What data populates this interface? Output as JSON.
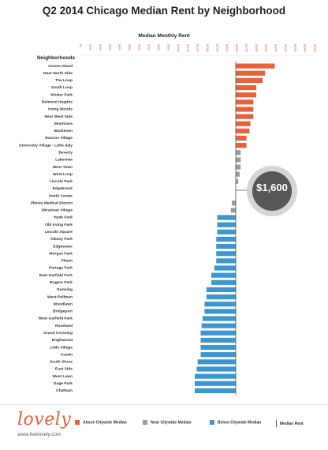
{
  "chart_data": {
    "type": "bar",
    "orientation": "horizontal",
    "title": "Q2 2014 Chicago Median Rent by Neighborhood",
    "xlabel": "Median Monthly Rent",
    "ylabel": "Neighborhoods",
    "reference_line": {
      "value": 1600,
      "label": "$1,600"
    },
    "xlim": [
      0,
      2400
    ],
    "x_ticks": [
      0,
      100,
      200,
      300,
      400,
      500,
      600,
      700,
      800,
      900,
      1000,
      1100,
      1200,
      1300,
      1400,
      1500,
      1600,
      1700,
      1800,
      1900,
      2000,
      2100,
      2200,
      2300,
      2400
    ],
    "x_tick_labels": [
      "$0",
      "$100",
      "$200",
      "$300",
      "$400",
      "$500",
      "$600",
      "$700",
      "$800",
      "$900",
      "$1000",
      "$1100",
      "$1200",
      "$1300",
      "$1400",
      "$1500",
      "$1600",
      "$1700",
      "$1800",
      "$1900",
      "$2000",
      "$2100",
      "$2200",
      "$2300",
      "$2400"
    ],
    "categories": [
      "Goose Island",
      "Near North Side",
      "The Loop",
      "South Loop",
      "Wicker Park",
      "Belmont Heights",
      "Irving Woods",
      "Near West Side",
      "Montclare",
      "Bucktown",
      "Roscoe Village",
      "University Village - Little Italy",
      "Beverly",
      "Lakeview",
      "West Town",
      "West Loop",
      "Lincoln Park",
      "Edgebrook",
      "North Center",
      "Illinois Medical District",
      "Ukrainian Village",
      "Hyde Park",
      "Old Irving Park",
      "Lincoln Square",
      "Albany Park",
      "Edgewater",
      "Morgan Park",
      "Pilsen",
      "Portage Park",
      "East Garfield Park",
      "Rogers Park",
      "Dunning",
      "West Pullman",
      "Woodlawn",
      "Bridgeport",
      "West Garfield Park",
      "Roseland",
      "Grand Crossing",
      "Englewood",
      "Little Village",
      "Austin",
      "South Shore",
      "East Side",
      "West Lawn",
      "Gage Park",
      "Chatham"
    ],
    "values": [
      2000,
      1900,
      1875,
      1810,
      1810,
      1780,
      1780,
      1780,
      1750,
      1740,
      1710,
      1710,
      1650,
      1650,
      1650,
      1640,
      1625,
      1600,
      1600,
      1560,
      1550,
      1410,
      1410,
      1410,
      1400,
      1400,
      1400,
      1400,
      1380,
      1350,
      1350,
      1300,
      1300,
      1280,
      1280,
      1260,
      1250,
      1240,
      1240,
      1240,
      1240,
      1210,
      1200,
      1180,
      1180,
      1180
    ],
    "groups": [
      "above",
      "above",
      "above",
      "above",
      "above",
      "above",
      "above",
      "above",
      "above",
      "above",
      "above",
      "above",
      "near",
      "near",
      "near",
      "near",
      "near",
      "none",
      "none",
      "near",
      "near",
      "below",
      "below",
      "below",
      "below",
      "below",
      "below",
      "below",
      "below",
      "below",
      "below",
      "below",
      "below",
      "below",
      "below",
      "below",
      "below",
      "below",
      "below",
      "below",
      "below",
      "below",
      "below",
      "below",
      "below",
      "below"
    ],
    "colors": {
      "above": "#e8603c",
      "near": "#9b9b9b",
      "below": "#3c97d0",
      "line": "#555555"
    },
    "legend": [
      {
        "key": "above",
        "label": "Above Citywide Median"
      },
      {
        "key": "near",
        "label": "Near Citywide Median"
      },
      {
        "key": "below",
        "label": "Below Citywide Median"
      },
      {
        "key": "line",
        "label": "Median Rent"
      }
    ]
  },
  "footer": {
    "logo": "lovely",
    "url": "www.livelovely.com"
  }
}
